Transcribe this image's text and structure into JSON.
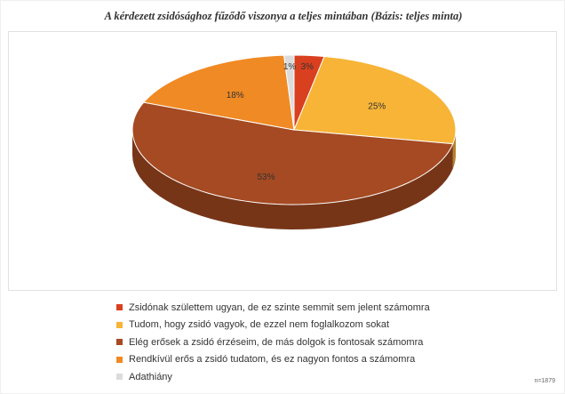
{
  "chart_data": {
    "type": "pie",
    "title": "A kérdezett zsidósághoz fűződő viszonya a teljes mintában (Bázis: teljes minta)",
    "slices": [
      {
        "label": "Zsidónak születtem ugyan, de ez szinte semmit sem jelent számomra",
        "value": 3,
        "value_label": "3%",
        "color": "#d9401f"
      },
      {
        "label": "Tudom, hogy zsidó vagyok, de ezzel nem foglalkozom sokat",
        "value": 25,
        "value_label": "25%",
        "color": "#f7b437"
      },
      {
        "label": "Elég erősek a zsidó érzéseim, de más dolgok is fontosak számomra",
        "value": 53,
        "value_label": "53%",
        "color": "#a54a22"
      },
      {
        "label": "Rendkívül erős a zsidó tudatom, és ez nagyon fontos a számomra",
        "value": 18,
        "value_label": "18%",
        "color": "#f08a24"
      },
      {
        "label": "Adathiány",
        "value": 1,
        "value_label": "1%",
        "color": "#dcdcdc"
      }
    ],
    "legend_position": "bottom",
    "three_d": true
  },
  "sample_note": "n=1879"
}
